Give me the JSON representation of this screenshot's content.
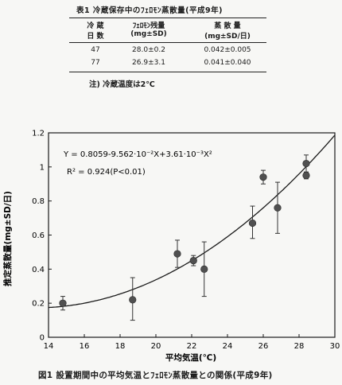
{
  "table": {
    "caption": "表1 冷蔵保存中のﾌｪﾛﾓﾝ蒸散量(平成9年)",
    "headers": {
      "col1": [
        "冷 蔵",
        "日 数"
      ],
      "col2": [
        "ﾌｪﾛﾓﾝ残量",
        "(mg±SD)"
      ],
      "col3": [
        "蒸 散 量",
        "(mg±SD/日)"
      ]
    },
    "rows": [
      {
        "days": "47",
        "residual": "28.0±0.2",
        "evaporation": "0.042±0.005"
      },
      {
        "days": "77",
        "residual": "26.9±3.1",
        "evaporation": "0.041±0.040"
      }
    ],
    "note": "注) 冷蔵温度は2℃"
  },
  "chart_data": {
    "type": "scatter",
    "xlabel": "平均気温(℃)",
    "ylabel": "推定蒸散量(mg±SD/日)",
    "xlim": [
      14,
      30
    ],
    "ylim": [
      0,
      1.2
    ],
    "xticks": [
      "14",
      "16",
      "18",
      "20",
      "22",
      "24",
      "26",
      "28",
      "30"
    ],
    "yticks": [
      "0",
      "0.2",
      "0.4",
      "0.6",
      "0.8",
      "1",
      "1.2"
    ],
    "points": [
      {
        "x": 14.8,
        "y": 0.2,
        "lo": 0.16,
        "hi": 0.24
      },
      {
        "x": 18.7,
        "y": 0.22,
        "lo": 0.1,
        "hi": 0.35
      },
      {
        "x": 21.2,
        "y": 0.49,
        "lo": 0.41,
        "hi": 0.57
      },
      {
        "x": 22.1,
        "y": 0.45,
        "lo": 0.42,
        "hi": 0.48
      },
      {
        "x": 22.7,
        "y": 0.4,
        "lo": 0.24,
        "hi": 0.56
      },
      {
        "x": 25.4,
        "y": 0.67,
        "lo": 0.58,
        "hi": 0.77
      },
      {
        "x": 26.0,
        "y": 0.94,
        "lo": 0.9,
        "hi": 0.98
      },
      {
        "x": 26.8,
        "y": 0.76,
        "lo": 0.61,
        "hi": 0.91
      },
      {
        "x": 28.4,
        "y": 1.02,
        "lo": 0.97,
        "hi": 1.07
      },
      {
        "x": 28.4,
        "y": 0.95,
        "lo": 0.93,
        "hi": 0.97
      }
    ],
    "fit": {
      "a": 0.8059,
      "b": -0.09562,
      "c": 0.00361
    },
    "equation": "Y = 0.8059-9.562·10⁻²X+3.61·10⁻³X²",
    "r2": "R² = 0.924(P<0.01)",
    "grid": false,
    "caption": "図1 設置期間中の平均気温とﾌｪﾛﾓﾝ蒸散量との関係(平成9年)"
  }
}
